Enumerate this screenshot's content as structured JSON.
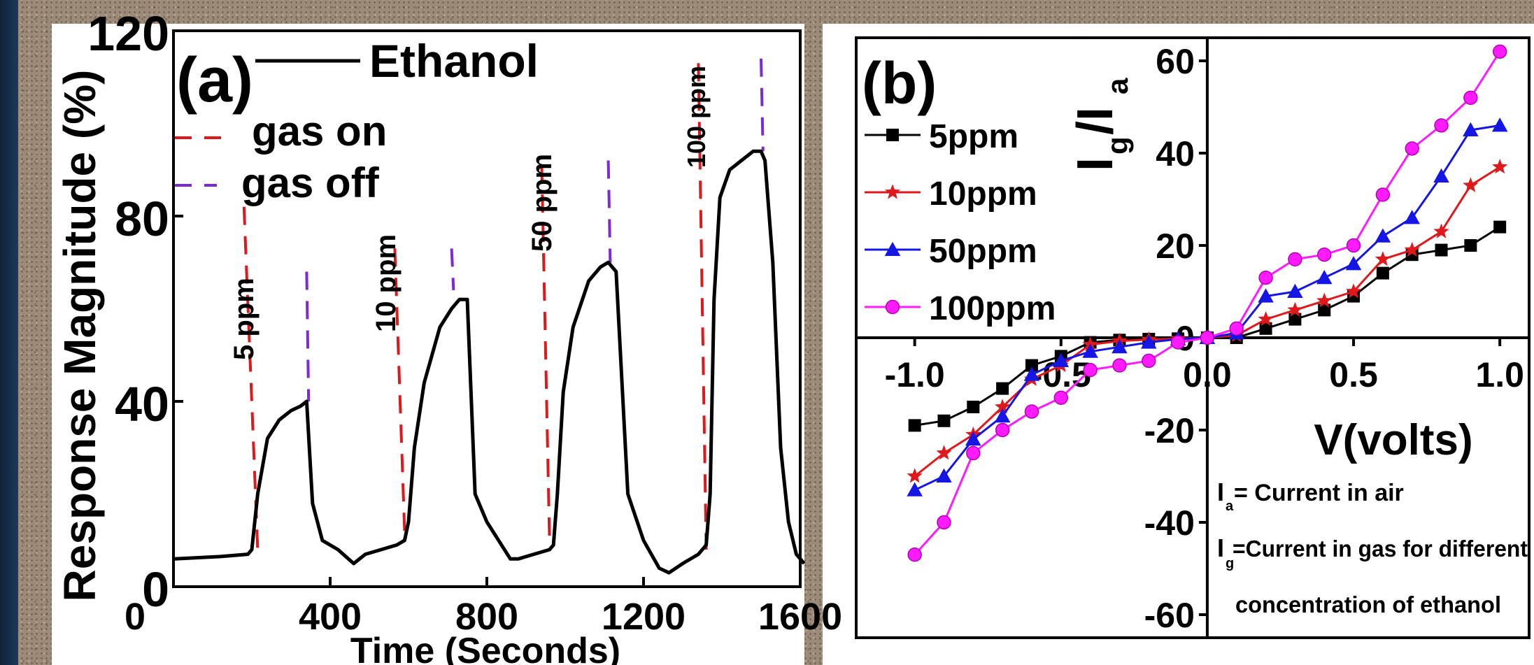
{
  "chart_data": [
    {
      "panel": "(a)",
      "type": "line",
      "xlabel": "Time (Seconds)",
      "ylabel": "Response Magnitude (%)",
      "xlim": [
        0,
        1600
      ],
      "ylim": [
        0,
        120
      ],
      "x_ticks": [
        "0",
        "400",
        "800",
        "1200",
        "1600"
      ],
      "y_ticks": [
        "0",
        "40",
        "80",
        "120"
      ],
      "legend": {
        "placement": "top",
        "line_label": "Ethanol",
        "gas_on_label": "gas on",
        "gas_off_label": "gas off"
      },
      "colors": {
        "response": "#000000",
        "gas_on": "#e0181b",
        "gas_off": "#7b2bd6"
      },
      "series": [
        {
          "name": "Ethanol",
          "x": [
            0,
            120,
            190,
            200,
            215,
            240,
            270,
            300,
            325,
            340,
            355,
            380,
            420,
            460,
            490,
            530,
            570,
            590,
            600,
            615,
            640,
            680,
            710,
            730,
            750,
            770,
            800,
            830,
            860,
            880,
            920,
            960,
            970,
            980,
            995,
            1020,
            1060,
            1090,
            1110,
            1130,
            1160,
            1200,
            1240,
            1265,
            1300,
            1340,
            1360,
            1370,
            1380,
            1395,
            1420,
            1450,
            1480,
            1500,
            1510,
            1530,
            1550,
            1570,
            1590,
            1610
          ],
          "y": [
            6,
            6.5,
            7,
            8,
            20,
            32,
            36,
            38,
            39,
            40,
            18,
            10,
            8,
            5,
            7,
            8,
            9,
            10,
            14,
            30,
            44,
            56,
            60,
            62,
            62,
            20,
            14,
            10,
            6,
            6,
            7,
            8,
            9,
            20,
            42,
            56,
            66,
            69,
            70,
            68,
            20,
            10,
            4,
            3,
            5,
            7,
            9,
            20,
            62,
            84,
            90,
            92,
            94,
            94,
            92,
            70,
            30,
            14,
            7,
            5
          ]
        }
      ],
      "gas_on_lines": [
        {
          "x": [
            180,
            215
          ],
          "y": [
            82,
            8
          ]
        },
        {
          "x": [
            565,
            590
          ],
          "y": [
            73,
            12
          ]
        },
        {
          "x": [
            940,
            960
          ],
          "y": [
            91,
            10
          ]
        },
        {
          "x": [
            1340,
            1360
          ],
          "y": [
            113,
            8
          ]
        }
      ],
      "gas_off_lines": [
        {
          "x": [
            340,
            345
          ],
          "y": [
            68,
            40
          ]
        },
        {
          "x": [
            710,
            715
          ],
          "y": [
            73,
            64
          ]
        },
        {
          "x": [
            1110,
            1115
          ],
          "y": [
            92,
            70
          ]
        },
        {
          "x": [
            1500,
            1505
          ],
          "y": [
            114,
            94
          ]
        }
      ],
      "annotations": [
        "5 ppm",
        "10 ppm",
        "50 ppm",
        "100 ppm"
      ]
    },
    {
      "panel": "(b)",
      "type": "line",
      "xlabel": "V(volts)",
      "ylabel": "Ig/Ia",
      "xlim": [
        -1.2,
        1.1
      ],
      "ylim": [
        -65,
        65
      ],
      "x_ticks": [
        "-1.0",
        "-0.5",
        "0.0",
        "0.5",
        "1.0"
      ],
      "y_ticks": [
        "60",
        "40",
        "20",
        "0",
        "-20",
        "-40",
        "-60"
      ],
      "legend": {
        "placement": "top-left"
      },
      "x": [
        -1.0,
        -0.9,
        -0.8,
        -0.7,
        -0.6,
        -0.5,
        -0.4,
        -0.3,
        -0.2,
        -0.1,
        0.0,
        0.1,
        0.2,
        0.3,
        0.4,
        0.5,
        0.6,
        0.7,
        0.8,
        0.9,
        1.0
      ],
      "series": [
        {
          "name": "5ppm",
          "marker": "square",
          "color": "#000000",
          "values": [
            -19,
            -18,
            -15,
            -11,
            -6,
            -4,
            -1,
            -0.5,
            -0.3,
            -0.2,
            0,
            0,
            2,
            4,
            6,
            9,
            14,
            18,
            19,
            20,
            24
          ]
        },
        {
          "name": "10ppm",
          "marker": "star",
          "color": "#e0181b",
          "values": [
            -30,
            -25,
            -21,
            -15,
            -9,
            -6,
            -1.5,
            -0.7,
            -0.4,
            -0.2,
            0,
            0.5,
            4,
            6,
            8,
            10,
            17,
            19,
            23,
            33,
            37
          ]
        },
        {
          "name": "50ppm",
          "marker": "triangle",
          "color": "#1515e6",
          "values": [
            -33,
            -30,
            -22,
            -17,
            -8,
            -5,
            -3,
            -2,
            -1,
            -0.3,
            0,
            1,
            9,
            10,
            13,
            16,
            22,
            26,
            35,
            45,
            46
          ]
        },
        {
          "name": "100ppm",
          "marker": "circle",
          "color": "#ff1aff",
          "values": [
            -47,
            -40,
            -25,
            -20,
            -16,
            -13,
            -7,
            -6,
            -5,
            -1,
            0,
            2,
            13,
            17,
            18,
            20,
            31,
            41,
            46,
            52,
            62
          ]
        }
      ],
      "notes": [
        {
          "symbol": "I",
          "sub": "a",
          "text": "= Current in air"
        },
        {
          "symbol": "I",
          "sub": "g",
          "text": "=Current in gas for different"
        },
        {
          "symbol": "",
          "sub": "",
          "text": "concentration of ethanol"
        }
      ]
    }
  ]
}
